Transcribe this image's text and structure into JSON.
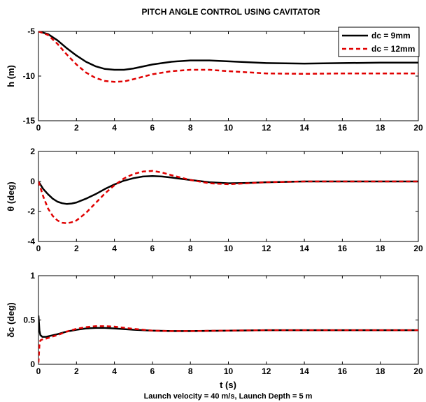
{
  "figure": {
    "title": "PITCH ANGLE CONTROL USING CAVITATOR",
    "xlabel": "t (s)",
    "caption": "Launch velocity = 40 m/s, Launch Depth = 5 m"
  },
  "legend": {
    "items": [
      {
        "label": "dc = 9mm",
        "color": "#000000",
        "dash": "solid"
      },
      {
        "label": "dc = 12mm",
        "color": "#e00000",
        "dash": "dashed"
      }
    ]
  },
  "chart_data": [
    {
      "type": "line",
      "title": "PITCH ANGLE CONTROL USING CAVITATOR",
      "ylabel": "h (m)",
      "xlim": [
        0,
        20
      ],
      "ylim": [
        -15,
        -5
      ],
      "xticks": [
        0,
        2,
        4,
        6,
        8,
        10,
        12,
        14,
        16,
        18,
        20
      ],
      "yticks": [
        -15,
        -10,
        -5
      ],
      "series": [
        {
          "name": "dc = 9mm",
          "color": "#000000",
          "dash": "solid",
          "x": [
            0,
            0.5,
            1,
            1.5,
            2,
            2.5,
            3,
            3.5,
            4,
            4.5,
            5,
            6,
            7,
            8,
            9,
            10,
            12,
            14,
            16,
            18,
            20
          ],
          "y": [
            -5,
            -5.3,
            -6.0,
            -6.9,
            -7.7,
            -8.4,
            -8.9,
            -9.2,
            -9.3,
            -9.3,
            -9.15,
            -8.7,
            -8.4,
            -8.25,
            -8.25,
            -8.35,
            -8.55,
            -8.6,
            -8.55,
            -8.5,
            -8.5
          ]
        },
        {
          "name": "dc = 12mm",
          "color": "#e00000",
          "dash": "dashed",
          "x": [
            0,
            0.5,
            1,
            1.5,
            2,
            2.5,
            3,
            3.5,
            4,
            4.5,
            5,
            6,
            7,
            8,
            9,
            10,
            12,
            14,
            16,
            18,
            20
          ],
          "y": [
            -5,
            -5.4,
            -6.4,
            -7.6,
            -8.7,
            -9.6,
            -10.2,
            -10.55,
            -10.65,
            -10.6,
            -10.35,
            -9.8,
            -9.45,
            -9.3,
            -9.3,
            -9.45,
            -9.7,
            -9.75,
            -9.7,
            -9.7,
            -9.7
          ]
        }
      ]
    },
    {
      "type": "line",
      "ylabel": "θ (deg)",
      "xlim": [
        0,
        20
      ],
      "ylim": [
        -4,
        2
      ],
      "xticks": [
        0,
        2,
        4,
        6,
        8,
        10,
        12,
        14,
        16,
        18,
        20
      ],
      "yticks": [
        -4,
        -2,
        0,
        2
      ],
      "series": [
        {
          "name": "dc = 9mm",
          "color": "#000000",
          "dash": "solid",
          "x": [
            0,
            0.25,
            0.5,
            0.75,
            1,
            1.25,
            1.5,
            1.75,
            2,
            2.5,
            3,
            3.5,
            4,
            4.5,
            5,
            5.5,
            6,
            6.5,
            7,
            8,
            9,
            10,
            11,
            12,
            14,
            16,
            18,
            20
          ],
          "y": [
            0,
            -0.5,
            -0.85,
            -1.15,
            -1.35,
            -1.45,
            -1.5,
            -1.47,
            -1.4,
            -1.15,
            -0.85,
            -0.5,
            -0.2,
            0.05,
            0.22,
            0.33,
            0.36,
            0.33,
            0.26,
            0.1,
            -0.05,
            -0.12,
            -0.1,
            -0.05,
            0,
            0,
            0,
            0
          ]
        },
        {
          "name": "dc = 12mm",
          "color": "#e00000",
          "dash": "dashed",
          "x": [
            0,
            0.25,
            0.5,
            0.75,
            1,
            1.25,
            1.5,
            1.75,
            2,
            2.5,
            3,
            3.5,
            4,
            4.5,
            5,
            5.5,
            6,
            6.5,
            7,
            8,
            9,
            10,
            11,
            12,
            14,
            16,
            18,
            20
          ],
          "y": [
            0,
            -1.0,
            -1.8,
            -2.3,
            -2.6,
            -2.75,
            -2.78,
            -2.72,
            -2.6,
            -2.1,
            -1.45,
            -0.8,
            -0.25,
            0.2,
            0.5,
            0.66,
            0.7,
            0.6,
            0.42,
            0.1,
            -0.12,
            -0.18,
            -0.12,
            -0.05,
            0,
            0,
            0,
            0
          ]
        }
      ]
    },
    {
      "type": "line",
      "ylabel": "δc (deg)",
      "xlim": [
        0,
        20
      ],
      "ylim": [
        0,
        1
      ],
      "xticks": [
        0,
        2,
        4,
        6,
        8,
        10,
        12,
        14,
        16,
        18,
        20
      ],
      "yticks": [
        0,
        0.5,
        1
      ],
      "series": [
        {
          "name": "dc = 9mm",
          "color": "#000000",
          "dash": "solid",
          "x": [
            0,
            0.05,
            0.1,
            0.2,
            0.4,
            0.7,
            1,
            1.5,
            2,
            2.5,
            3,
            3.5,
            4,
            5,
            6,
            7,
            8,
            10,
            12,
            14,
            16,
            18,
            20
          ],
          "y": [
            0.55,
            0.38,
            0.33,
            0.31,
            0.31,
            0.325,
            0.34,
            0.37,
            0.39,
            0.405,
            0.41,
            0.41,
            0.405,
            0.39,
            0.38,
            0.375,
            0.375,
            0.38,
            0.385,
            0.385,
            0.385,
            0.385,
            0.385
          ]
        },
        {
          "name": "dc = 12mm",
          "color": "#e00000",
          "dash": "dashed",
          "x": [
            0,
            0.05,
            0.1,
            0.2,
            0.4,
            0.7,
            1,
            1.5,
            2,
            2.5,
            3,
            3.5,
            4,
            5,
            6,
            7,
            8,
            10,
            12,
            14,
            16,
            18,
            20
          ],
          "y": [
            0.02,
            0.22,
            0.27,
            0.28,
            0.29,
            0.31,
            0.33,
            0.37,
            0.4,
            0.42,
            0.43,
            0.43,
            0.425,
            0.4,
            0.38,
            0.375,
            0.375,
            0.38,
            0.385,
            0.385,
            0.385,
            0.385,
            0.385
          ]
        }
      ]
    }
  ]
}
